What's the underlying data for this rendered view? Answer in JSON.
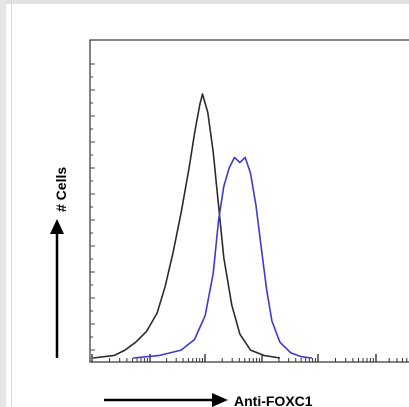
{
  "chart_data": {
    "type": "line",
    "title": "",
    "xlabel": "Anti-FOXC1",
    "ylabel": "# Cells",
    "x_scale": "log",
    "grid": false,
    "legend": "none",
    "series": [
      {
        "color": "#2b2b2b",
        "points": [
          [
            0.0,
            0.0
          ],
          [
            0.08,
            0.01
          ],
          [
            0.12,
            0.03
          ],
          [
            0.16,
            0.06
          ],
          [
            0.2,
            0.1
          ],
          [
            0.24,
            0.17
          ],
          [
            0.27,
            0.27
          ],
          [
            0.3,
            0.4
          ],
          [
            0.33,
            0.55
          ],
          [
            0.36,
            0.72
          ],
          [
            0.38,
            0.85
          ],
          [
            0.4,
            0.96
          ],
          [
            0.41,
            1.0
          ],
          [
            0.43,
            0.93
          ],
          [
            0.45,
            0.78
          ],
          [
            0.47,
            0.58
          ],
          [
            0.49,
            0.38
          ],
          [
            0.52,
            0.2
          ],
          [
            0.55,
            0.09
          ],
          [
            0.59,
            0.03
          ],
          [
            0.64,
            0.01
          ],
          [
            0.7,
            0.0
          ]
        ]
      },
      {
        "color": "#3a3ad8",
        "points": [
          [
            0.15,
            0.0
          ],
          [
            0.25,
            0.01
          ],
          [
            0.33,
            0.03
          ],
          [
            0.38,
            0.07
          ],
          [
            0.42,
            0.16
          ],
          [
            0.45,
            0.32
          ],
          [
            0.47,
            0.52
          ],
          [
            0.49,
            0.65
          ],
          [
            0.51,
            0.72
          ],
          [
            0.53,
            0.76
          ],
          [
            0.55,
            0.74
          ],
          [
            0.57,
            0.76
          ],
          [
            0.59,
            0.7
          ],
          [
            0.61,
            0.58
          ],
          [
            0.63,
            0.42
          ],
          [
            0.65,
            0.26
          ],
          [
            0.67,
            0.14
          ],
          [
            0.7,
            0.06
          ],
          [
            0.74,
            0.02
          ],
          [
            0.78,
            0.005
          ],
          [
            0.82,
            0.0
          ]
        ]
      }
    ]
  }
}
